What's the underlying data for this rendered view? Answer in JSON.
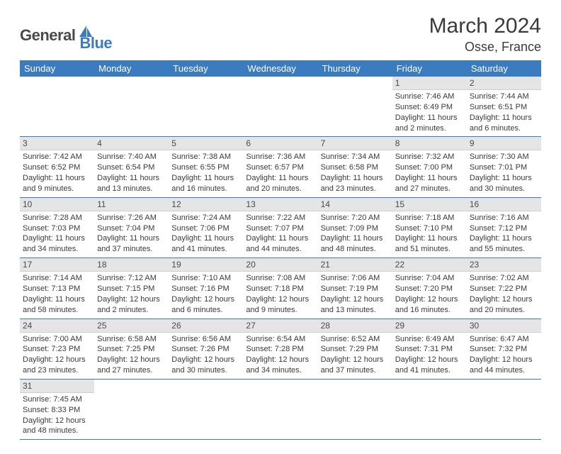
{
  "brand": {
    "part1": "General",
    "part2": "Blue"
  },
  "title": "March 2024",
  "location": "Osse, France",
  "colors": {
    "header_bg": "#3b7bbf",
    "header_text": "#ffffff",
    "daynum_bg": "#e5e5e5",
    "rule": "#3b7bbf",
    "logo_gray": "#4a4a4a",
    "logo_blue": "#3b7bbf"
  },
  "weekdays": [
    "Sunday",
    "Monday",
    "Tuesday",
    "Wednesday",
    "Thursday",
    "Friday",
    "Saturday"
  ],
  "weeks": [
    [
      null,
      null,
      null,
      null,
      null,
      {
        "n": "1",
        "sr": "Sunrise: 7:46 AM",
        "ss": "Sunset: 6:49 PM",
        "dl": "Daylight: 11 hours and 2 minutes."
      },
      {
        "n": "2",
        "sr": "Sunrise: 7:44 AM",
        "ss": "Sunset: 6:51 PM",
        "dl": "Daylight: 11 hours and 6 minutes."
      }
    ],
    [
      {
        "n": "3",
        "sr": "Sunrise: 7:42 AM",
        "ss": "Sunset: 6:52 PM",
        "dl": "Daylight: 11 hours and 9 minutes."
      },
      {
        "n": "4",
        "sr": "Sunrise: 7:40 AM",
        "ss": "Sunset: 6:54 PM",
        "dl": "Daylight: 11 hours and 13 minutes."
      },
      {
        "n": "5",
        "sr": "Sunrise: 7:38 AM",
        "ss": "Sunset: 6:55 PM",
        "dl": "Daylight: 11 hours and 16 minutes."
      },
      {
        "n": "6",
        "sr": "Sunrise: 7:36 AM",
        "ss": "Sunset: 6:57 PM",
        "dl": "Daylight: 11 hours and 20 minutes."
      },
      {
        "n": "7",
        "sr": "Sunrise: 7:34 AM",
        "ss": "Sunset: 6:58 PM",
        "dl": "Daylight: 11 hours and 23 minutes."
      },
      {
        "n": "8",
        "sr": "Sunrise: 7:32 AM",
        "ss": "Sunset: 7:00 PM",
        "dl": "Daylight: 11 hours and 27 minutes."
      },
      {
        "n": "9",
        "sr": "Sunrise: 7:30 AM",
        "ss": "Sunset: 7:01 PM",
        "dl": "Daylight: 11 hours and 30 minutes."
      }
    ],
    [
      {
        "n": "10",
        "sr": "Sunrise: 7:28 AM",
        "ss": "Sunset: 7:03 PM",
        "dl": "Daylight: 11 hours and 34 minutes."
      },
      {
        "n": "11",
        "sr": "Sunrise: 7:26 AM",
        "ss": "Sunset: 7:04 PM",
        "dl": "Daylight: 11 hours and 37 minutes."
      },
      {
        "n": "12",
        "sr": "Sunrise: 7:24 AM",
        "ss": "Sunset: 7:06 PM",
        "dl": "Daylight: 11 hours and 41 minutes."
      },
      {
        "n": "13",
        "sr": "Sunrise: 7:22 AM",
        "ss": "Sunset: 7:07 PM",
        "dl": "Daylight: 11 hours and 44 minutes."
      },
      {
        "n": "14",
        "sr": "Sunrise: 7:20 AM",
        "ss": "Sunset: 7:09 PM",
        "dl": "Daylight: 11 hours and 48 minutes."
      },
      {
        "n": "15",
        "sr": "Sunrise: 7:18 AM",
        "ss": "Sunset: 7:10 PM",
        "dl": "Daylight: 11 hours and 51 minutes."
      },
      {
        "n": "16",
        "sr": "Sunrise: 7:16 AM",
        "ss": "Sunset: 7:12 PM",
        "dl": "Daylight: 11 hours and 55 minutes."
      }
    ],
    [
      {
        "n": "17",
        "sr": "Sunrise: 7:14 AM",
        "ss": "Sunset: 7:13 PM",
        "dl": "Daylight: 11 hours and 58 minutes."
      },
      {
        "n": "18",
        "sr": "Sunrise: 7:12 AM",
        "ss": "Sunset: 7:15 PM",
        "dl": "Daylight: 12 hours and 2 minutes."
      },
      {
        "n": "19",
        "sr": "Sunrise: 7:10 AM",
        "ss": "Sunset: 7:16 PM",
        "dl": "Daylight: 12 hours and 6 minutes."
      },
      {
        "n": "20",
        "sr": "Sunrise: 7:08 AM",
        "ss": "Sunset: 7:18 PM",
        "dl": "Daylight: 12 hours and 9 minutes."
      },
      {
        "n": "21",
        "sr": "Sunrise: 7:06 AM",
        "ss": "Sunset: 7:19 PM",
        "dl": "Daylight: 12 hours and 13 minutes."
      },
      {
        "n": "22",
        "sr": "Sunrise: 7:04 AM",
        "ss": "Sunset: 7:20 PM",
        "dl": "Daylight: 12 hours and 16 minutes."
      },
      {
        "n": "23",
        "sr": "Sunrise: 7:02 AM",
        "ss": "Sunset: 7:22 PM",
        "dl": "Daylight: 12 hours and 20 minutes."
      }
    ],
    [
      {
        "n": "24",
        "sr": "Sunrise: 7:00 AM",
        "ss": "Sunset: 7:23 PM",
        "dl": "Daylight: 12 hours and 23 minutes."
      },
      {
        "n": "25",
        "sr": "Sunrise: 6:58 AM",
        "ss": "Sunset: 7:25 PM",
        "dl": "Daylight: 12 hours and 27 minutes."
      },
      {
        "n": "26",
        "sr": "Sunrise: 6:56 AM",
        "ss": "Sunset: 7:26 PM",
        "dl": "Daylight: 12 hours and 30 minutes."
      },
      {
        "n": "27",
        "sr": "Sunrise: 6:54 AM",
        "ss": "Sunset: 7:28 PM",
        "dl": "Daylight: 12 hours and 34 minutes."
      },
      {
        "n": "28",
        "sr": "Sunrise: 6:52 AM",
        "ss": "Sunset: 7:29 PM",
        "dl": "Daylight: 12 hours and 37 minutes."
      },
      {
        "n": "29",
        "sr": "Sunrise: 6:49 AM",
        "ss": "Sunset: 7:31 PM",
        "dl": "Daylight: 12 hours and 41 minutes."
      },
      {
        "n": "30",
        "sr": "Sunrise: 6:47 AM",
        "ss": "Sunset: 7:32 PM",
        "dl": "Daylight: 12 hours and 44 minutes."
      }
    ],
    [
      {
        "n": "31",
        "sr": "Sunrise: 7:45 AM",
        "ss": "Sunset: 8:33 PM",
        "dl": "Daylight: 12 hours and 48 minutes."
      },
      null,
      null,
      null,
      null,
      null,
      null
    ]
  ]
}
